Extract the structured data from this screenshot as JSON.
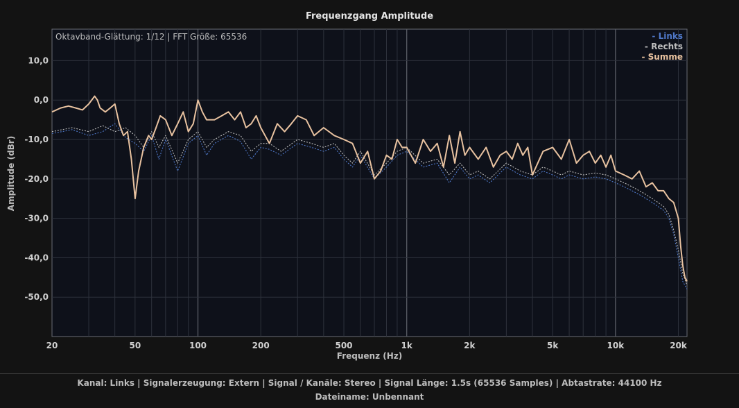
{
  "chart_data": {
    "type": "line",
    "title": "Frequenzgang Amplitude",
    "info": "Oktavband-Glättung: 1/12 | FFT Größe: 65536",
    "xlabel": "Frequenz (Hz)",
    "ylabel": "Amplitude (dBr)",
    "x_scale": "log",
    "xlim": [
      20,
      22000
    ],
    "ylim": [
      -60,
      18
    ],
    "x_ticks": [
      20,
      50,
      100,
      200,
      500,
      1000,
      2000,
      5000,
      10000,
      20000
    ],
    "x_tick_labels": [
      "20",
      "50",
      "100",
      "200",
      "500",
      "1k",
      "2k",
      "5k",
      "10k",
      "20k"
    ],
    "y_ticks": [
      10,
      0,
      -10,
      -20,
      -30,
      -40,
      -50
    ],
    "y_tick_labels": [
      "10,0",
      "0,0",
      "-10,0",
      "-20,0",
      "-30,0",
      "-40,0",
      "-50,0"
    ],
    "grid": true,
    "legend_position": "top-right",
    "series": [
      {
        "name": "- Links",
        "color": "#4f78c8",
        "style": "dotted",
        "x": [
          20,
          25,
          30,
          35,
          40,
          45,
          50,
          55,
          60,
          65,
          70,
          80,
          90,
          100,
          110,
          120,
          140,
          160,
          180,
          200,
          220,
          250,
          300,
          350,
          400,
          450,
          500,
          550,
          600,
          700,
          800,
          900,
          1000,
          1200,
          1400,
          1600,
          1800,
          2000,
          2200,
          2500,
          3000,
          3500,
          4000,
          4500,
          5000,
          5500,
          6000,
          7000,
          8000,
          9000,
          10000,
          11000,
          12000,
          13000,
          14000,
          15000,
          16000,
          17000,
          18000,
          19000,
          20000,
          21000,
          22000
        ],
        "y": [
          -8.5,
          -7.5,
          -9,
          -8,
          -6,
          -9.5,
          -11,
          -13,
          -9,
          -15,
          -10,
          -18,
          -11,
          -9,
          -14,
          -11,
          -9,
          -10.5,
          -15,
          -12,
          -12.5,
          -14,
          -11,
          -12,
          -13,
          -12,
          -15,
          -17,
          -14,
          -20,
          -17,
          -14,
          -13,
          -17,
          -16,
          -21,
          -17,
          -20,
          -19,
          -21,
          -17,
          -19,
          -20,
          -18,
          -19,
          -20,
          -19,
          -20,
          -19.5,
          -20,
          -21,
          -22,
          -23,
          -24,
          -25,
          -26,
          -27,
          -28,
          -30,
          -34,
          -40,
          -46,
          -48
        ]
      },
      {
        "name": "- Rechts",
        "color": "#bdbdbd",
        "style": "dotted",
        "x": [
          20,
          25,
          30,
          35,
          40,
          45,
          50,
          55,
          60,
          65,
          70,
          80,
          90,
          100,
          110,
          120,
          140,
          160,
          180,
          200,
          220,
          250,
          300,
          350,
          400,
          450,
          500,
          550,
          600,
          700,
          800,
          900,
          1000,
          1200,
          1400,
          1600,
          1800,
          2000,
          2200,
          2500,
          3000,
          3500,
          4000,
          4500,
          5000,
          5500,
          6000,
          7000,
          8000,
          9000,
          10000,
          11000,
          12000,
          13000,
          14000,
          15000,
          16000,
          17000,
          18000,
          19000,
          20000,
          21000,
          22000
        ],
        "y": [
          -8,
          -7,
          -8,
          -6.5,
          -8,
          -7,
          -9,
          -12,
          -8,
          -12,
          -9,
          -16,
          -10,
          -8,
          -12,
          -10,
          -8,
          -9,
          -13,
          -11,
          -11,
          -13,
          -10,
          -11,
          -12,
          -11,
          -14,
          -16,
          -13,
          -19,
          -16,
          -13,
          -12,
          -16,
          -15,
          -19,
          -16,
          -19,
          -18,
          -20,
          -16,
          -18,
          -19,
          -17,
          -18,
          -19,
          -18,
          -19,
          -18.5,
          -19,
          -20,
          -21,
          -22,
          -23,
          -24,
          -25,
          -26,
          -27,
          -29,
          -33,
          -38,
          -44,
          -47
        ]
      },
      {
        "name": "- Summe",
        "color": "#e8c2a0",
        "style": "solid",
        "x": [
          20,
          22,
          24,
          26,
          28,
          30,
          32,
          33,
          34,
          36,
          38,
          40,
          42,
          44,
          46,
          48,
          50,
          52,
          55,
          58,
          60,
          63,
          66,
          70,
          75,
          80,
          85,
          90,
          95,
          100,
          105,
          110,
          120,
          130,
          140,
          150,
          160,
          170,
          180,
          190,
          200,
          220,
          240,
          260,
          280,
          300,
          330,
          360,
          400,
          450,
          500,
          550,
          600,
          650,
          700,
          750,
          800,
          850,
          900,
          950,
          1000,
          1100,
          1200,
          1300,
          1400,
          1500,
          1600,
          1700,
          1800,
          1900,
          2000,
          2200,
          2400,
          2600,
          2800,
          3000,
          3200,
          3400,
          3600,
          3800,
          4000,
          4500,
          5000,
          5500,
          6000,
          6500,
          7000,
          7500,
          8000,
          8500,
          9000,
          9500,
          10000,
          11000,
          12000,
          13000,
          14000,
          15000,
          16000,
          17000,
          18000,
          19000,
          20000,
          20500,
          21000,
          21500,
          22000
        ],
        "y": [
          -3,
          -2,
          -1.5,
          -2,
          -2.5,
          -1,
          1,
          0,
          -2,
          -3,
          -2,
          -1,
          -6,
          -9,
          -8,
          -15,
          -25,
          -18,
          -12,
          -9,
          -10,
          -7,
          -4,
          -5,
          -9,
          -6,
          -3,
          -8,
          -6,
          0,
          -3,
          -5,
          -5,
          -4,
          -3,
          -5,
          -3,
          -7,
          -6,
          -4,
          -7,
          -11,
          -6,
          -8,
          -6,
          -4,
          -5,
          -9,
          -7,
          -9,
          -10,
          -11,
          -16,
          -13,
          -20,
          -18,
          -14,
          -15,
          -10,
          -12,
          -12,
          -16,
          -10,
          -13,
          -11,
          -17,
          -9,
          -16,
          -8,
          -14,
          -12,
          -15,
          -12,
          -17,
          -14,
          -13,
          -15,
          -11,
          -14,
          -12,
          -19,
          -13,
          -12,
          -15,
          -10,
          -16,
          -14,
          -13,
          -16,
          -14,
          -17,
          -14,
          -18,
          -19,
          -20,
          -18,
          -22,
          -21,
          -23,
          -23,
          -25,
          -26,
          -30,
          -37,
          -42,
          -45,
          -46
        ]
      }
    ]
  },
  "footer": {
    "line1": "Kanal: Links  |  Signalerzeugung: Extern   |  Signal / Kanäle: Stereo  |  Signal Länge: 1.5s (65536 Samples)  |  Abtastrate: 44100 Hz",
    "line2": "Dateiname: Unbennant"
  }
}
